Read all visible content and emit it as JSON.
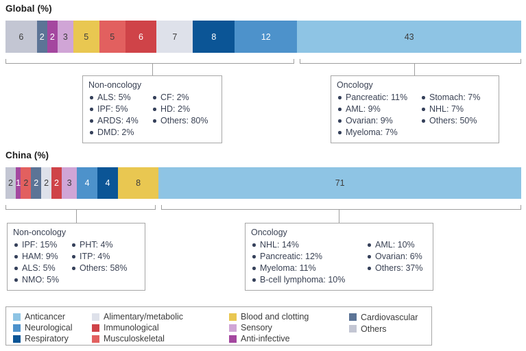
{
  "titles": {
    "global": "Global (%)",
    "china": "China (%)"
  },
  "colors": {
    "Anticancer": "#8ec4e4",
    "Neurological": "#4d92cb",
    "Respiratory": "#0b5596",
    "Alimentary/metabolic": "#dee1ea",
    "Immunological": "#cf4348",
    "Musculoskeletal": "#e2605f",
    "Blood and clotting": "#e9c751",
    "Sensory": "#d0a5d6",
    "Anti-infective": "#a4479f",
    "Cardiovascular": "#5c7496",
    "Others": "#c3c6d3"
  },
  "chart_data": [
    {
      "type": "bar",
      "title": "Global (%)",
      "orientation": "horizontal-stacked",
      "segments": [
        {
          "category": "Others",
          "value": 6,
          "text": "dark"
        },
        {
          "category": "Cardiovascular",
          "value": 2,
          "text": "light"
        },
        {
          "category": "Anti-infective",
          "value": 2,
          "text": "light"
        },
        {
          "category": "Sensory",
          "value": 3,
          "text": "dark"
        },
        {
          "category": "Blood and clotting",
          "value": 5,
          "text": "dark"
        },
        {
          "category": "Musculoskeletal",
          "value": 5,
          "text": "dark"
        },
        {
          "category": "Immunological",
          "value": 6,
          "text": "light"
        },
        {
          "category": "Alimentary/metabolic",
          "value": 7,
          "text": "dark"
        },
        {
          "category": "Respiratory",
          "value": 8,
          "text": "light"
        },
        {
          "category": "Neurological",
          "value": 12,
          "text": "light"
        },
        {
          "category": "Anticancer",
          "value": 43,
          "text": "dark"
        }
      ],
      "callouts": {
        "non_oncology": {
          "title": "Non-oncology",
          "col1": [
            "ALS: 5%",
            "IPF: 5%",
            "ARDS: 4%",
            "DMD: 2%"
          ],
          "col2": [
            "CF: 2%",
            "HD: 2%",
            "Others: 80%"
          ]
        },
        "oncology": {
          "title": "Oncology",
          "col1": [
            "Pancreatic: 11%",
            "AML: 9%",
            "Ovarian: 9%",
            "Myeloma: 7%"
          ],
          "col2": [
            "Stomach: 7%",
            "NHL: 7%",
            "Others: 50%"
          ]
        }
      }
    },
    {
      "type": "bar",
      "title": "China (%)",
      "orientation": "horizontal-stacked",
      "segments": [
        {
          "category": "Others",
          "value": 2,
          "text": "dark"
        },
        {
          "category": "Anti-infective",
          "value": 1,
          "text": "light"
        },
        {
          "category": "Musculoskeletal",
          "value": 2,
          "text": "dark"
        },
        {
          "category": "Cardiovascular",
          "value": 2,
          "text": "light"
        },
        {
          "category": "Alimentary/metabolic",
          "value": 2,
          "text": "dark"
        },
        {
          "category": "Immunological",
          "value": 2,
          "text": "light"
        },
        {
          "category": "Sensory",
          "value": 3,
          "text": "dark"
        },
        {
          "category": "Neurological",
          "value": 4,
          "text": "light"
        },
        {
          "category": "Respiratory",
          "value": 4,
          "text": "light"
        },
        {
          "category": "Blood and clotting",
          "value": 8,
          "text": "dark"
        },
        {
          "category": "Anticancer",
          "value": 71,
          "text": "dark"
        }
      ],
      "callouts": {
        "non_oncology": {
          "title": "Non-oncology",
          "col1": [
            "IPF: 15%",
            "HAM: 9%",
            "ALS: 5%",
            "NMO: 5%"
          ],
          "col2": [
            "PHT: 4%",
            "ITP: 4%",
            "Others: 58%"
          ]
        },
        "oncology": {
          "title": "Oncology",
          "col1": [
            "NHL: 14%",
            "Pancreatic: 12%",
            "Myeloma: 11%",
            "B-cell lymphoma: 10%"
          ],
          "col2": [
            "AML: 10%",
            "Ovarian: 6%",
            "Others: 37%"
          ]
        }
      }
    }
  ],
  "legend": {
    "columns": [
      [
        "Anticancer",
        "Neurological",
        "Respiratory"
      ],
      [
        "Alimentary/metabolic",
        "Immunological",
        "Musculoskeletal"
      ],
      [
        "Blood and clotting",
        "Sensory",
        "Anti-infective"
      ],
      [
        "Cardiovascular",
        "Others"
      ]
    ]
  }
}
